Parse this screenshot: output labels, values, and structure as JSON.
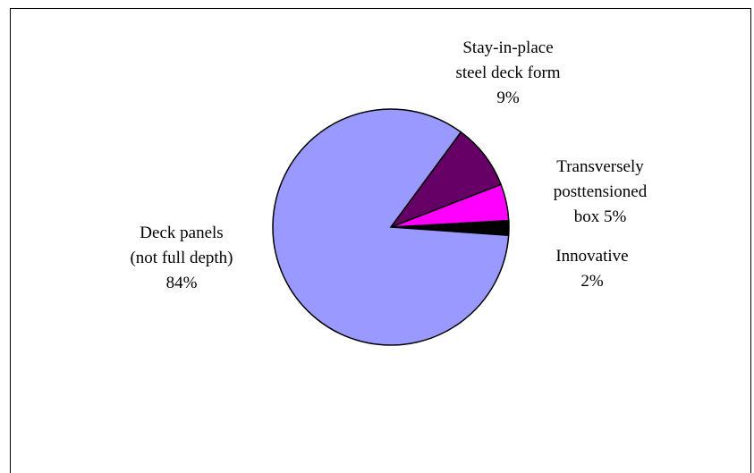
{
  "chart_data": {
    "type": "pie",
    "title": "",
    "slices": [
      {
        "label_lines": [
          "Deck panels",
          "(not full depth)",
          "84%"
        ],
        "value": 84,
        "color": "#9999FF"
      },
      {
        "label_lines": [
          "Stay-in-place",
          "steel deck form",
          "9%"
        ],
        "value": 9,
        "color": "#660066"
      },
      {
        "label_lines": [
          "Transversely",
          "posttensioned",
          "box 5%"
        ],
        "value": 5,
        "color": "#FF00FF"
      },
      {
        "label_lines": [
          "Innovative",
          "2%"
        ],
        "value": 2,
        "color": "#000000"
      }
    ],
    "legend": "none",
    "label_placement": "outside"
  }
}
